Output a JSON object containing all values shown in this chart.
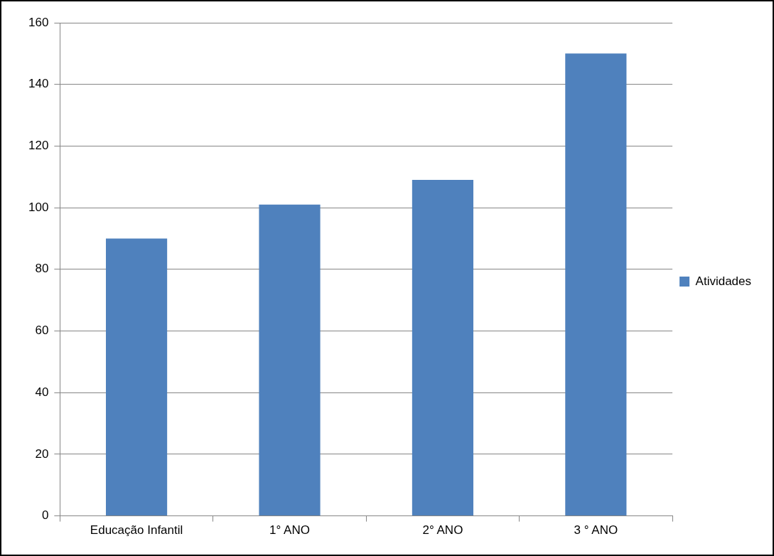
{
  "chart_data": {
    "type": "bar",
    "categories": [
      "Educação Infantil",
      "1° ANO",
      "2° ANO",
      "3 ° ANO"
    ],
    "series": [
      {
        "name": "Atividades",
        "color": "#4f81bd",
        "values": [
          90,
          101,
          109,
          150
        ]
      }
    ],
    "ylim": [
      0,
      160
    ],
    "yticks": [
      0,
      20,
      40,
      60,
      80,
      100,
      120,
      140,
      160
    ],
    "grid": "y",
    "legend": "right"
  }
}
